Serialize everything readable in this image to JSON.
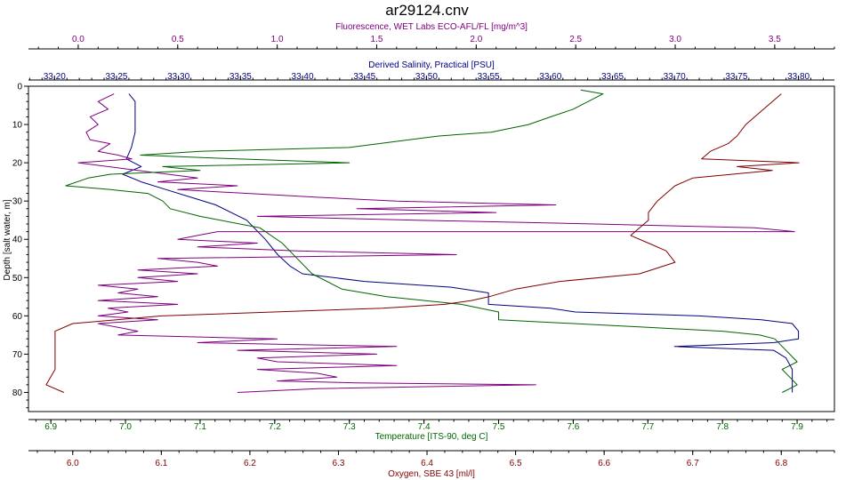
{
  "chart_data": {
    "type": "line",
    "title": "ar29124.cnv",
    "grid": false,
    "y_axis": {
      "label": "Depth [salt water, m]",
      "range": [
        0,
        85
      ],
      "inverted": true,
      "ticks": [
        0,
        10,
        20,
        30,
        40,
        50,
        60,
        70,
        80
      ],
      "tick_labels": [
        "0",
        "10",
        "20",
        "30",
        "40",
        "50",
        "60",
        "70",
        "80"
      ]
    },
    "x_axes": [
      {
        "id": "fluorescence",
        "position": "top-outer",
        "label": "Fluorescence, WET Labs ECO-AFL/FL [mg/m^3]",
        "color": "#800080",
        "range": [
          -0.25,
          3.8
        ],
        "ticks": [
          0.0,
          0.5,
          1.0,
          1.5,
          2.0,
          2.5,
          3.0,
          3.5
        ],
        "tick_labels": [
          "0.0",
          "0.5",
          "1.0",
          "1.5",
          "2.0",
          "2.5",
          "3.0",
          "3.5"
        ]
      },
      {
        "id": "salinity",
        "position": "top-inner",
        "label": "Derived Salinity, Practical [PSU]",
        "color": "#000080",
        "range": [
          33.179,
          33.829
        ],
        "ticks": [
          33.2,
          33.25,
          33.3,
          33.35,
          33.4,
          33.45,
          33.5,
          33.55,
          33.6,
          33.65,
          33.7,
          33.75,
          33.8
        ],
        "tick_labels": [
          "33.20",
          "33.25",
          "33.30",
          "33.35",
          "33.40",
          "33.45",
          "33.50",
          "33.55",
          "33.60",
          "33.65",
          "33.70",
          "33.75",
          "33.80"
        ]
      },
      {
        "id": "temperature",
        "position": "bottom-inner",
        "label": "Temperature [ITS-90, deg C]",
        "color": "#006400",
        "range": [
          6.87,
          7.95
        ],
        "ticks": [
          6.9,
          7.0,
          7.1,
          7.2,
          7.3,
          7.4,
          7.5,
          7.6,
          7.7,
          7.8,
          7.9
        ],
        "tick_labels": [
          "6.9",
          "7.0",
          "7.1",
          "7.2",
          "7.3",
          "7.4",
          "7.5",
          "7.6",
          "7.7",
          "7.8",
          "7.9"
        ]
      },
      {
        "id": "oxygen",
        "position": "bottom-outer",
        "label": "Oxygen, SBE 43 [ml/l]",
        "color": "#800000",
        "range": [
          5.95,
          6.86
        ],
        "ticks": [
          6.0,
          6.1,
          6.2,
          6.3,
          6.4,
          6.5,
          6.6,
          6.7,
          6.8
        ],
        "tick_labels": [
          "6.0",
          "6.1",
          "6.2",
          "6.3",
          "6.4",
          "6.5",
          "6.6",
          "6.7",
          "6.8"
        ]
      }
    ],
    "series": [
      {
        "axis": "salinity",
        "color": "#000080",
        "points": [
          [
            33.26,
            2
          ],
          [
            33.265,
            4
          ],
          [
            33.265,
            8
          ],
          [
            33.265,
            12
          ],
          [
            33.262,
            16
          ],
          [
            33.258,
            19
          ],
          [
            33.27,
            21
          ],
          [
            33.255,
            23
          ],
          [
            33.27,
            25
          ],
          [
            33.29,
            27
          ],
          [
            33.31,
            29
          ],
          [
            33.33,
            31
          ],
          [
            33.355,
            35
          ],
          [
            33.37,
            40
          ],
          [
            33.38,
            44
          ],
          [
            33.39,
            47
          ],
          [
            33.4,
            49
          ],
          [
            33.45,
            51
          ],
          [
            33.52,
            52.5
          ],
          [
            33.55,
            54
          ],
          [
            33.55,
            57
          ],
          [
            33.6,
            58
          ],
          [
            33.62,
            59
          ],
          [
            33.72,
            60
          ],
          [
            33.77,
            61
          ],
          [
            33.795,
            62
          ],
          [
            33.8,
            64
          ],
          [
            33.8,
            66
          ],
          [
            33.78,
            67
          ],
          [
            33.7,
            68
          ],
          [
            33.78,
            69
          ],
          [
            33.79,
            71
          ],
          [
            33.795,
            74
          ],
          [
            33.795,
            77
          ],
          [
            33.795,
            80
          ]
        ]
      },
      {
        "axis": "fluorescence",
        "color": "#800080",
        "points": [
          [
            0.18,
            2
          ],
          [
            0.1,
            4
          ],
          [
            0.15,
            6
          ],
          [
            0.06,
            8
          ],
          [
            0.1,
            10
          ],
          [
            0.04,
            12
          ],
          [
            0.06,
            14
          ],
          [
            0.16,
            15
          ],
          [
            0.1,
            17
          ],
          [
            0.2,
            18
          ],
          [
            0.27,
            19
          ],
          [
            0.0,
            20
          ],
          [
            0.3,
            22
          ],
          [
            0.6,
            24
          ],
          [
            0.4,
            25
          ],
          [
            0.8,
            26
          ],
          [
            0.5,
            27
          ],
          [
            1.2,
            29
          ],
          [
            1.6,
            30
          ],
          [
            2.4,
            31
          ],
          [
            1.4,
            32
          ],
          [
            2.1,
            33
          ],
          [
            0.9,
            34
          ],
          [
            1.7,
            35
          ],
          [
            2.6,
            36
          ],
          [
            3.4,
            37
          ],
          [
            3.6,
            38
          ],
          [
            0.7,
            38
          ],
          [
            0.6,
            39
          ],
          [
            0.5,
            40
          ],
          [
            0.9,
            41
          ],
          [
            0.6,
            42
          ],
          [
            1.1,
            43
          ],
          [
            1.9,
            44
          ],
          [
            0.4,
            45
          ],
          [
            0.6,
            46
          ],
          [
            0.7,
            47
          ],
          [
            0.3,
            48
          ],
          [
            0.6,
            49
          ],
          [
            0.3,
            50
          ],
          [
            0.5,
            51
          ],
          [
            0.1,
            52
          ],
          [
            0.3,
            53
          ],
          [
            0.2,
            54
          ],
          [
            0.4,
            55
          ],
          [
            0.1,
            56
          ],
          [
            0.5,
            57
          ],
          [
            0.15,
            58
          ],
          [
            0.25,
            59
          ],
          [
            0.1,
            60
          ],
          [
            0.4,
            61
          ],
          [
            0.1,
            62
          ],
          [
            0.2,
            63
          ],
          [
            0.3,
            64
          ],
          [
            0.2,
            65
          ],
          [
            1.0,
            66
          ],
          [
            0.6,
            67
          ],
          [
            1.6,
            68
          ],
          [
            0.8,
            69
          ],
          [
            1.5,
            70
          ],
          [
            0.9,
            71
          ],
          [
            1.0,
            72
          ],
          [
            1.6,
            73
          ],
          [
            0.9,
            74
          ],
          [
            1.2,
            75
          ],
          [
            1.3,
            76
          ],
          [
            1.0,
            77
          ],
          [
            1.4,
            77.5
          ],
          [
            2.3,
            78
          ],
          [
            1.2,
            79
          ],
          [
            0.8,
            80
          ]
        ]
      },
      {
        "axis": "temperature",
        "color": "#006400",
        "points": [
          [
            7.61,
            1
          ],
          [
            7.64,
            2
          ],
          [
            7.62,
            4
          ],
          [
            7.6,
            6
          ],
          [
            7.57,
            8
          ],
          [
            7.54,
            10
          ],
          [
            7.49,
            12
          ],
          [
            7.42,
            13
          ],
          [
            7.38,
            14
          ],
          [
            7.3,
            16
          ],
          [
            7.1,
            17
          ],
          [
            7.02,
            18
          ],
          [
            7.15,
            19
          ],
          [
            7.3,
            20
          ],
          [
            7.05,
            21
          ],
          [
            7.1,
            22
          ],
          [
            6.98,
            23
          ],
          [
            6.95,
            24
          ],
          [
            6.92,
            26
          ],
          [
            6.98,
            27
          ],
          [
            7.03,
            28
          ],
          [
            7.05,
            30
          ],
          [
            7.06,
            32
          ],
          [
            7.1,
            34
          ],
          [
            7.18,
            37
          ],
          [
            7.21,
            41
          ],
          [
            7.23,
            45
          ],
          [
            7.25,
            49
          ],
          [
            7.29,
            53
          ],
          [
            7.35,
            55
          ],
          [
            7.45,
            57
          ],
          [
            7.5,
            59
          ],
          [
            7.5,
            61
          ],
          [
            7.7,
            63
          ],
          [
            7.8,
            64
          ],
          [
            7.85,
            65
          ],
          [
            7.87,
            66
          ],
          [
            7.88,
            68
          ],
          [
            7.89,
            70
          ],
          [
            7.9,
            72
          ],
          [
            7.88,
            74
          ],
          [
            7.89,
            76
          ],
          [
            7.9,
            78
          ],
          [
            7.88,
            80
          ]
        ]
      },
      {
        "axis": "oxygen",
        "color": "#800000",
        "points": [
          [
            6.8,
            2
          ],
          [
            6.79,
            4
          ],
          [
            6.78,
            6
          ],
          [
            6.77,
            8
          ],
          [
            6.76,
            10
          ],
          [
            6.75,
            13
          ],
          [
            6.74,
            15
          ],
          [
            6.72,
            17
          ],
          [
            6.71,
            19
          ],
          [
            6.82,
            20
          ],
          [
            6.75,
            21
          ],
          [
            6.79,
            22
          ],
          [
            6.7,
            24
          ],
          [
            6.68,
            26
          ],
          [
            6.67,
            28
          ],
          [
            6.66,
            30
          ],
          [
            6.65,
            33
          ],
          [
            6.65,
            35
          ],
          [
            6.64,
            37
          ],
          [
            6.63,
            39
          ],
          [
            6.65,
            41
          ],
          [
            6.67,
            43
          ],
          [
            6.68,
            46
          ],
          [
            6.64,
            49
          ],
          [
            6.55,
            51
          ],
          [
            6.5,
            53
          ],
          [
            6.47,
            55
          ],
          [
            6.45,
            56
          ],
          [
            6.42,
            57
          ],
          [
            6.35,
            58
          ],
          [
            6.1,
            60
          ],
          [
            6.0,
            62
          ],
          [
            5.98,
            64
          ],
          [
            5.98,
            68
          ],
          [
            5.98,
            74
          ],
          [
            5.97,
            78
          ],
          [
            5.99,
            80
          ]
        ]
      }
    ]
  }
}
